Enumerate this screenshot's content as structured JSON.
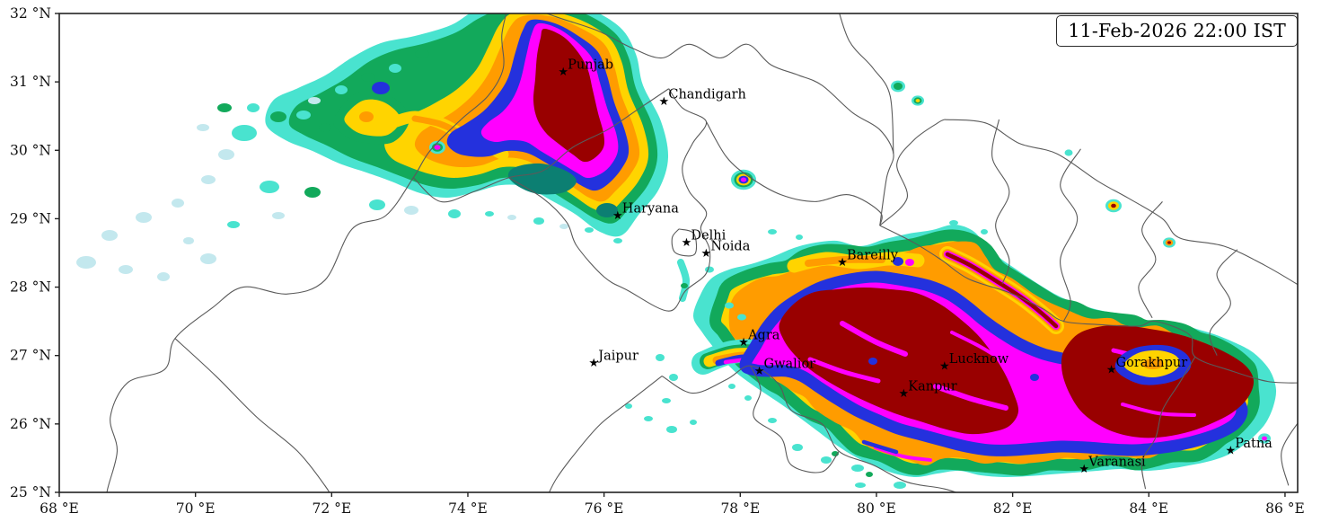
{
  "timestamp": "11-Feb-2026 22:00 IST",
  "axes": {
    "x_ticks": [
      "68 °E",
      "70 °E",
      "72 °E",
      "74 °E",
      "76 °E",
      "78 °E",
      "80 °E",
      "82 °E",
      "84 °E",
      "86 °E"
    ],
    "y_ticks": [
      "32 °N",
      "31 °N",
      "30 °N",
      "29 °N",
      "28 °N",
      "27 °N",
      "26 °N",
      "25 °N"
    ]
  },
  "map_extent": {
    "lon_min": 68,
    "lon_max": 86.2,
    "lat_min": 25,
    "lat_max": 32
  },
  "cities": [
    {
      "name": "Punjab",
      "lon": 75.4,
      "lat": 31.15
    },
    {
      "name": "Chandigarh",
      "lon": 76.88,
      "lat": 30.72
    },
    {
      "name": "Haryana",
      "lon": 76.2,
      "lat": 29.05
    },
    {
      "name": "Delhi",
      "lon": 77.21,
      "lat": 28.66
    },
    {
      "name": "Noida",
      "lon": 77.5,
      "lat": 28.5
    },
    {
      "name": "Bareilly",
      "lon": 79.5,
      "lat": 28.37
    },
    {
      "name": "Jaipur",
      "lon": 75.85,
      "lat": 26.9
    },
    {
      "name": "Agra",
      "lon": 78.05,
      "lat": 27.2
    },
    {
      "name": "Gwalior",
      "lon": 78.28,
      "lat": 26.78
    },
    {
      "name": "Lucknow",
      "lon": 81.0,
      "lat": 26.85
    },
    {
      "name": "Kanpur",
      "lon": 80.4,
      "lat": 26.45
    },
    {
      "name": "Gorakhpur",
      "lon": 83.45,
      "lat": 26.8
    },
    {
      "name": "Varanasi",
      "lon": 83.05,
      "lat": 25.35
    },
    {
      "name": "Patna",
      "lon": 85.2,
      "lat": 25.62
    }
  ],
  "palette": {
    "pale": "#c3e8ee",
    "turquoise": "#49e3cf",
    "green": "#12a95b",
    "teal": "#0c7f72",
    "yellow": "#ffd400",
    "orange": "#ff9c00",
    "blue": "#2431dd",
    "magenta": "#ff00ff",
    "red": "#990000",
    "frame": "#222222",
    "border_line": "#5a5a5a"
  }
}
